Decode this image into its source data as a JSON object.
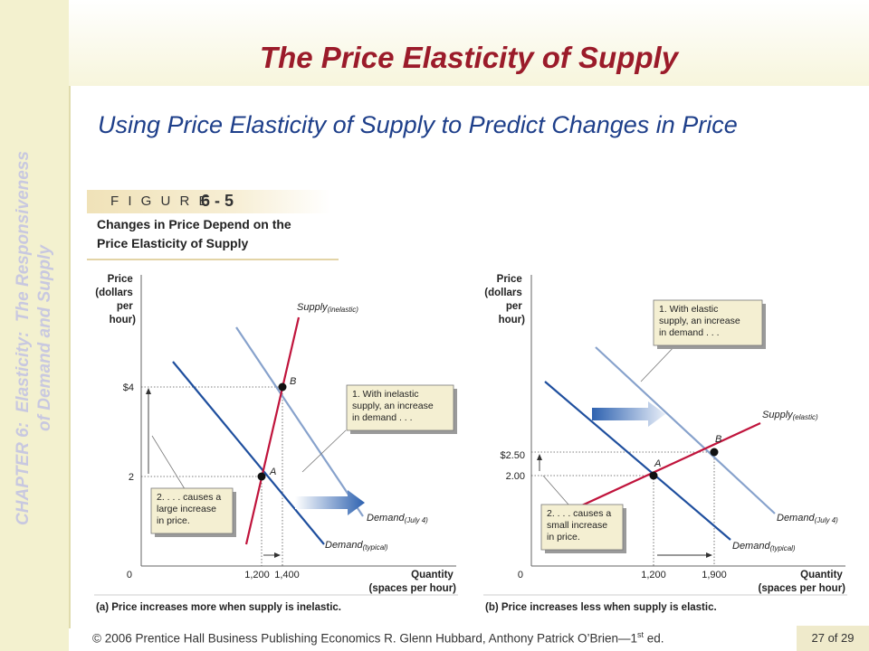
{
  "sidebar": {
    "line1": "CHAPTER 6:  Elasticity:  The Responsiveness",
    "line2": "of Demand and Supply"
  },
  "slide": {
    "title": "The Price Elasticity of Supply",
    "subtitle": "Using Price Elasticity of Supply to Predict Changes in Price"
  },
  "figure": {
    "label": "F I G U R E",
    "number": "6 - 5",
    "caption_line1": "Changes in Price Depend on the",
    "caption_line2": "Price Elasticity of Supply"
  },
  "chart_data": [
    {
      "type": "line",
      "ylabel": [
        "Price",
        "(dollars",
        "per",
        "hour)"
      ],
      "xlabel": [
        "Quantity",
        "(spaces per hour)"
      ],
      "caption": "(a) Price increases more when supply is inelastic.",
      "origin_label": "0",
      "x_ticks": [
        "1,200",
        "1,400"
      ],
      "y_ticks": [
        "2",
        "$4"
      ],
      "series": [
        {
          "name": "Supply",
          "name_sub": "(inelastic)",
          "color": "#c0143c"
        },
        {
          "name": "Demand",
          "name_sub": "(typical)",
          "color": "#1f4f9e"
        },
        {
          "name": "Demand",
          "name_sub": "(July 4)",
          "color": "#87a2cc"
        }
      ],
      "points": [
        {
          "label": "A",
          "x": 1200,
          "y": 2
        },
        {
          "label": "B",
          "x": 1400,
          "y": 4
        }
      ],
      "annotations": [
        {
          "id": "note1",
          "lines": [
            "1. With inelastic",
            "supply, an increase",
            "in demand . . ."
          ]
        },
        {
          "id": "note2",
          "lines": [
            "2.  . . . causes a",
            "large increase",
            "in price."
          ]
        }
      ]
    },
    {
      "type": "line",
      "ylabel": [
        "Price",
        "(dollars",
        "per",
        "hour)"
      ],
      "xlabel": [
        "Quantity",
        "(spaces per hour)"
      ],
      "caption": "(b) Price increases less when supply is elastic.",
      "origin_label": "0",
      "x_ticks": [
        "1,200",
        "1,900"
      ],
      "y_ticks": [
        "2.00",
        "$2.50"
      ],
      "series": [
        {
          "name": "Supply",
          "name_sub": "(elastic)",
          "color": "#c0143c"
        },
        {
          "name": "Demand",
          "name_sub": "(typical)",
          "color": "#1f4f9e"
        },
        {
          "name": "Demand",
          "name_sub": "(July 4)",
          "color": "#87a2cc"
        }
      ],
      "points": [
        {
          "label": "A",
          "x": 1200,
          "y": 2.0
        },
        {
          "label": "B",
          "x": 1900,
          "y": 2.5
        }
      ],
      "annotations": [
        {
          "id": "note1",
          "lines": [
            "1. With elastic",
            "supply, an increase",
            "in demand . . ."
          ]
        },
        {
          "id": "note2",
          "lines": [
            "2.  . . . causes a",
            "small increase",
            "in price."
          ]
        }
      ]
    }
  ],
  "footer": {
    "text": "© 2006 Prentice Hall Business Publishing   Economics  R. Glenn Hubbard, Anthony Patrick O’Brien—1",
    "sup": "st",
    "tail": " ed.",
    "page_current": "27",
    "page_sep": "of",
    "page_total": "29"
  }
}
